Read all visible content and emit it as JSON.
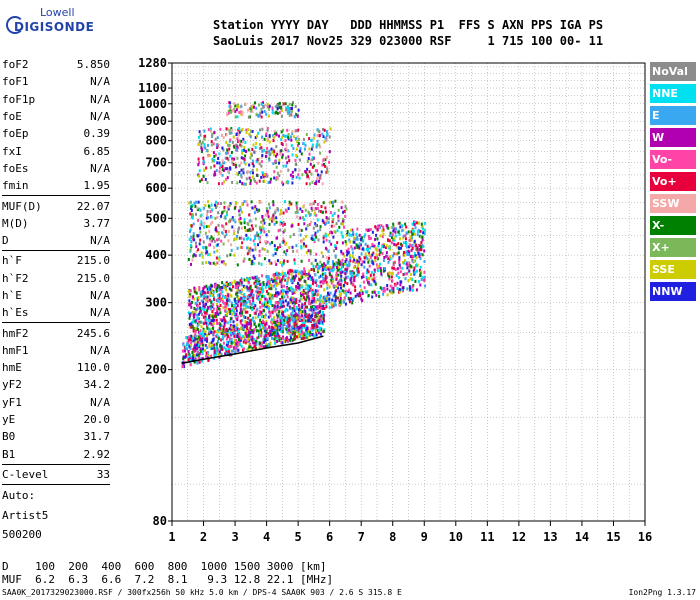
{
  "logo": {
    "top": "Lowell",
    "bottom": "DIGISONDE"
  },
  "header": {
    "line1": "Station YYYY DAY   DDD HHMMSS P1  FFS S AXN PPS IGA PS",
    "line2": "SaoLuis 2017 Nov25 329 023000 RSF     1 715 100 00- 11"
  },
  "params": [
    {
      "name": "foF2",
      "value": "5.850"
    },
    {
      "name": "foF1",
      "value": "N/A"
    },
    {
      "name": "foF1p",
      "value": "N/A"
    },
    {
      "name": "foE",
      "value": "N/A"
    },
    {
      "name": "foEp",
      "value": "0.39"
    },
    {
      "name": "fxI",
      "value": "6.85"
    },
    {
      "name": "foEs",
      "value": "N/A"
    },
    {
      "name": "fmin",
      "value": "1.95"
    },
    {
      "name": "MUF(D)",
      "value": "22.07"
    },
    {
      "name": "M(D)",
      "value": "3.77"
    },
    {
      "name": "D",
      "value": "N/A"
    },
    {
      "name": "h`F",
      "value": "215.0"
    },
    {
      "name": "h`F2",
      "value": "215.0"
    },
    {
      "name": "h`E",
      "value": "N/A"
    },
    {
      "name": "h`Es",
      "value": "N/A"
    },
    {
      "name": "hmF2",
      "value": "245.6"
    },
    {
      "name": "hmF1",
      "value": "N/A"
    },
    {
      "name": "hmE",
      "value": "110.0"
    },
    {
      "name": "yF2",
      "value": "34.2"
    },
    {
      "name": "yF1",
      "value": "N/A"
    },
    {
      "name": "yE",
      "value": "20.0"
    },
    {
      "name": "B0",
      "value": "31.7"
    },
    {
      "name": "B1",
      "value": "2.92"
    },
    {
      "name": "C-level",
      "value": "33"
    }
  ],
  "auto": {
    "line1": "Auto:",
    "line2": "Artist5",
    "line3": "500200"
  },
  "legend": [
    {
      "label": "NoVal",
      "color": "#8c8c8c"
    },
    {
      "label": "NNE",
      "color": "#00e0f0"
    },
    {
      "label": "E",
      "color": "#3aa8f0"
    },
    {
      "label": "W",
      "color": "#b000b0"
    },
    {
      "label": "Vo-",
      "color": "#ff44a8"
    },
    {
      "label": "Vo+",
      "color": "#e8003c"
    },
    {
      "label": "SSW",
      "color": "#f4a8a8"
    },
    {
      "label": "X-",
      "color": "#008000"
    },
    {
      "label": "X+",
      "color": "#7ab85a"
    },
    {
      "label": "SSE",
      "color": "#cccc00"
    },
    {
      "label": "NNW",
      "color": "#2020e0"
    }
  ],
  "chart_data": {
    "type": "scatter",
    "title": "",
    "xlabel": "",
    "ylabel": "",
    "xlim": [
      1,
      16
    ],
    "ylim": [
      80,
      1280
    ],
    "y_scale": "log",
    "x_ticks": [
      "1",
      "2",
      "3",
      "4",
      "5",
      "6",
      "7",
      "8",
      "9",
      "10",
      "11",
      "12",
      "13",
      "14",
      "15",
      "16"
    ],
    "y_ticks": [
      "80",
      "200",
      "300",
      "400",
      "500",
      "600",
      "700",
      "800",
      "900",
      "1000",
      "1100",
      "1280"
    ],
    "grid": true,
    "clusters": [
      {
        "name": "E-layer trace",
        "freq": [
          1.3,
          5.8
        ],
        "height": [
          205,
          300
        ]
      },
      {
        "name": "F-layer trace",
        "freq": [
          1.5,
          9.0
        ],
        "height": [
          240,
          470
        ]
      },
      {
        "name": "second hop",
        "freq": [
          1.5,
          6.5
        ],
        "height": [
          380,
          560
        ]
      },
      {
        "name": "third hop",
        "freq": [
          1.8,
          6.0
        ],
        "height": [
          620,
          870
        ]
      },
      {
        "name": "fourth hop",
        "freq": [
          2.7,
          5.0
        ],
        "height": [
          930,
          1020
        ]
      }
    ],
    "model_profile": {
      "freq": [
        1.3,
        2.0,
        3.0,
        4.0,
        5.0,
        5.8
      ],
      "height": [
        208,
        213,
        220,
        228,
        235,
        245
      ]
    }
  },
  "distance_table": {
    "d_label": "D",
    "d_values": [
      "100",
      "200",
      "400",
      "600",
      "800",
      "1000",
      "1500",
      "3000"
    ],
    "d_unit": "[km]",
    "muf_label": "MUF",
    "muf_values": [
      "6.2",
      "6.3",
      "6.6",
      "7.2",
      "8.1",
      "9.3",
      "12.8",
      "22.1"
    ],
    "muf_unit": "[MHz]"
  },
  "footer": "SAA0K_2017329023000.RSF / 300fx256h 50 kHz 5.0 km / DPS-4 SAA0K 903 / 2.6 S 315.8 E",
  "version": "Ion2Png 1.3.17"
}
